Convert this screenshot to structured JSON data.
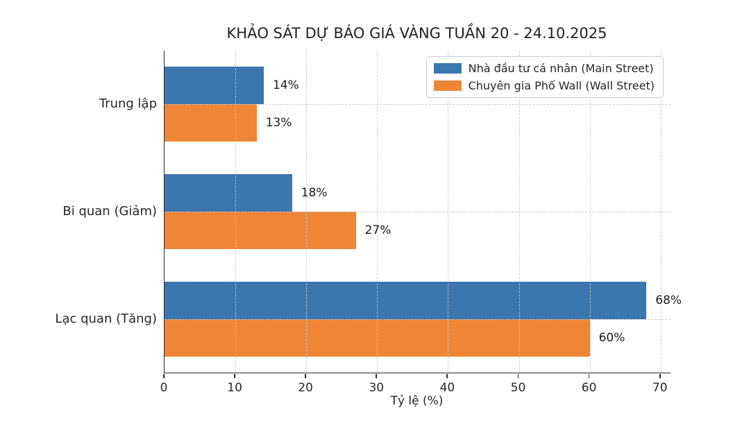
{
  "chart_data": {
    "type": "bar",
    "orientation": "horizontal",
    "title": "KHẢO SÁT DỰ BÁO GIÁ VÀNG TUẦN 20 - 24.10.2025",
    "xlabel": "Tỷ lệ (%)",
    "ylabel": "",
    "categories": [
      "Trung lập",
      "Bi quan (Giảm)",
      "Lạc quan (Tăng)"
    ],
    "series": [
      {
        "name": "Nhà đầu tư cá nhân (Main Street)",
        "color": "#3b76af",
        "values": [
          14,
          18,
          68
        ]
      },
      {
        "name": "Chuyên gia Phố Wall (Wall Street)",
        "color": "#ef8636",
        "values": [
          13,
          27,
          60
        ]
      }
    ],
    "value_suffix": "%",
    "xlim": [
      0,
      71.4
    ],
    "xticks": [
      0,
      10,
      20,
      30,
      40,
      50,
      60,
      70
    ],
    "grid": "dashed-both-axes-above-bars",
    "legend_position": "upper right"
  },
  "colors": {
    "background": "#ffffff",
    "spine": "#262626",
    "grid": "#c8c8c8",
    "text": "#262626"
  }
}
